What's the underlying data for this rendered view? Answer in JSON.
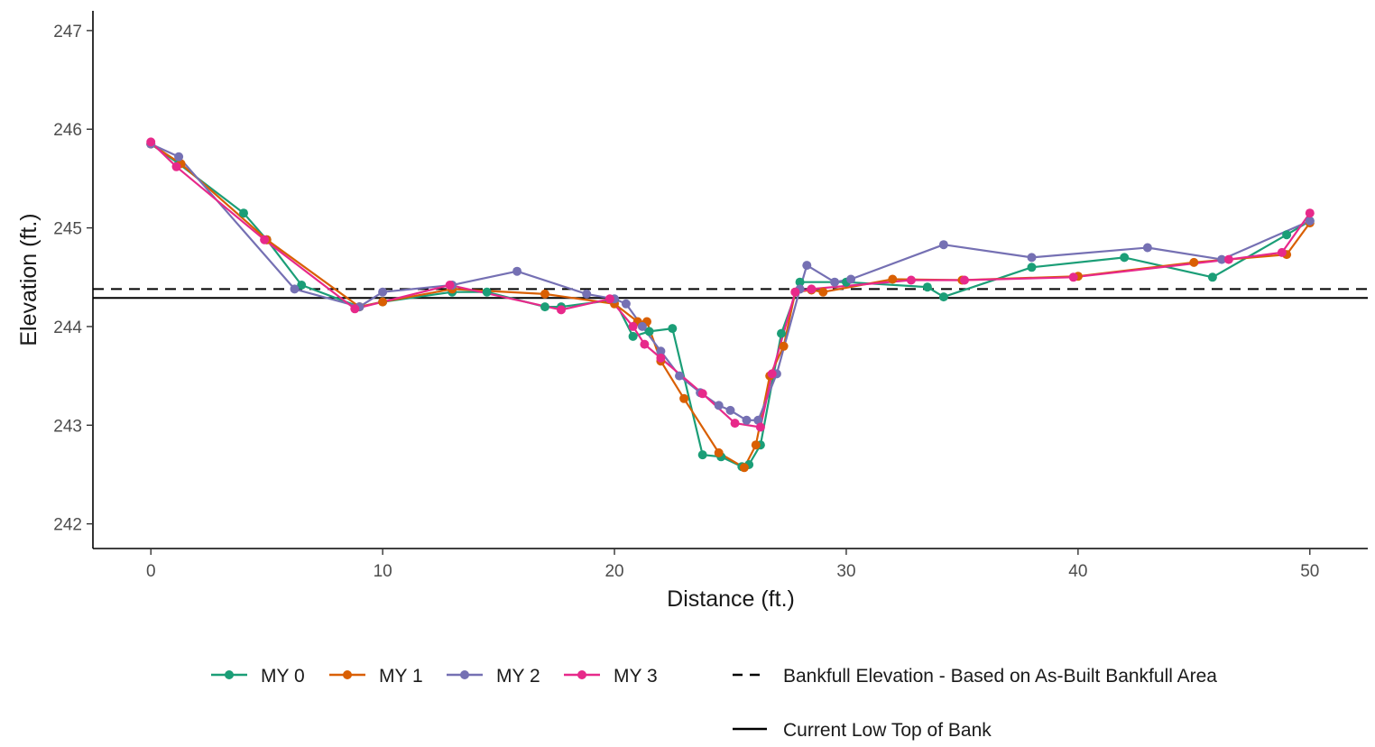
{
  "chart_data": {
    "type": "line",
    "xlabel": "Distance (ft.)",
    "ylabel": "Elevation (ft.)",
    "xlim": [
      -2.5,
      52.5
    ],
    "ylim": [
      241.75,
      247.2
    ],
    "x_ticks": [
      0,
      10,
      20,
      30,
      40,
      50
    ],
    "y_ticks": [
      242,
      243,
      244,
      245,
      246,
      247
    ],
    "grid": false,
    "legend_position": "bottom",
    "series": [
      {
        "name": "MY 0",
        "color": "#1b9e77",
        "points": [
          [
            0,
            245.85
          ],
          [
            1.2,
            245.65
          ],
          [
            4,
            245.15
          ],
          [
            5,
            244.88
          ],
          [
            6.5,
            244.42
          ],
          [
            9,
            244.2
          ],
          [
            10,
            244.25
          ],
          [
            13,
            244.35
          ],
          [
            14.5,
            244.35
          ],
          [
            17,
            244.2
          ],
          [
            17.7,
            244.2
          ],
          [
            20,
            244.27
          ],
          [
            20.8,
            243.9
          ],
          [
            21.5,
            243.95
          ],
          [
            22.5,
            243.98
          ],
          [
            23.8,
            242.7
          ],
          [
            24.6,
            242.68
          ],
          [
            25.5,
            242.58
          ],
          [
            25.8,
            242.6
          ],
          [
            26.3,
            242.8
          ],
          [
            27.2,
            243.93
          ],
          [
            28,
            244.45
          ],
          [
            30,
            244.45
          ],
          [
            33.5,
            244.4
          ],
          [
            34.2,
            244.3
          ],
          [
            38,
            244.6
          ],
          [
            42,
            244.7
          ],
          [
            45.8,
            244.5
          ],
          [
            49,
            244.93
          ],
          [
            50,
            245.07
          ]
        ]
      },
      {
        "name": "MY 1",
        "color": "#d95f02",
        "points": [
          [
            0,
            245.85
          ],
          [
            1.3,
            245.65
          ],
          [
            5,
            244.88
          ],
          [
            9,
            244.2
          ],
          [
            10,
            244.25
          ],
          [
            13,
            244.38
          ],
          [
            17,
            244.33
          ],
          [
            20,
            244.23
          ],
          [
            21,
            244.05
          ],
          [
            21.4,
            244.05
          ],
          [
            22,
            243.65
          ],
          [
            23,
            243.27
          ],
          [
            24.5,
            242.72
          ],
          [
            25.6,
            242.57
          ],
          [
            26.1,
            242.8
          ],
          [
            26.7,
            243.5
          ],
          [
            27.3,
            243.8
          ],
          [
            27.8,
            244.35
          ],
          [
            28.5,
            244.37
          ],
          [
            29,
            244.35
          ],
          [
            32,
            244.48
          ],
          [
            35,
            244.47
          ],
          [
            40,
            244.51
          ],
          [
            45,
            244.65
          ],
          [
            49,
            244.73
          ],
          [
            50,
            245.05
          ]
        ]
      },
      {
        "name": "MY 2",
        "color": "#7570b3",
        "points": [
          [
            0,
            245.85
          ],
          [
            1.2,
            245.72
          ],
          [
            6.2,
            244.38
          ],
          [
            9,
            244.2
          ],
          [
            10,
            244.35
          ],
          [
            13,
            244.42
          ],
          [
            15.8,
            244.56
          ],
          [
            18.8,
            244.33
          ],
          [
            20,
            244.28
          ],
          [
            20.5,
            244.23
          ],
          [
            21.2,
            244.0
          ],
          [
            22,
            243.75
          ],
          [
            22.8,
            243.5
          ],
          [
            23.7,
            243.33
          ],
          [
            24.5,
            243.2
          ],
          [
            25,
            243.15
          ],
          [
            25.7,
            243.05
          ],
          [
            26.2,
            243.05
          ],
          [
            27,
            243.52
          ],
          [
            28,
            244.38
          ],
          [
            28.3,
            244.62
          ],
          [
            29.5,
            244.45
          ],
          [
            30.2,
            244.48
          ],
          [
            34.2,
            244.83
          ],
          [
            38,
            244.7
          ],
          [
            43,
            244.8
          ],
          [
            46.2,
            244.68
          ],
          [
            50,
            245.07
          ]
        ]
      },
      {
        "name": "MY 3",
        "color": "#e7298a",
        "points": [
          [
            0,
            245.87
          ],
          [
            1.1,
            245.62
          ],
          [
            4.9,
            244.88
          ],
          [
            8.8,
            244.18
          ],
          [
            12.9,
            244.42
          ],
          [
            17.7,
            244.17
          ],
          [
            19.8,
            244.28
          ],
          [
            20.8,
            244.0
          ],
          [
            21.3,
            243.82
          ],
          [
            22.0,
            243.68
          ],
          [
            23.8,
            243.32
          ],
          [
            25.2,
            243.02
          ],
          [
            26.3,
            242.98
          ],
          [
            26.8,
            243.52
          ],
          [
            27.8,
            244.35
          ],
          [
            28.5,
            244.38
          ],
          [
            32.8,
            244.47
          ],
          [
            35.1,
            244.47
          ],
          [
            39.8,
            244.5
          ],
          [
            46.5,
            244.68
          ],
          [
            48.8,
            244.75
          ],
          [
            50,
            245.15
          ]
        ]
      }
    ],
    "reference_lines": [
      {
        "name": "Bankfull Elevation - Based on As-Built Bankfull Area",
        "y": 244.38,
        "style": "dashed",
        "color": "#000000"
      },
      {
        "name": "Current Low Top of Bank",
        "y": 244.29,
        "style": "solid",
        "color": "#000000"
      }
    ]
  }
}
